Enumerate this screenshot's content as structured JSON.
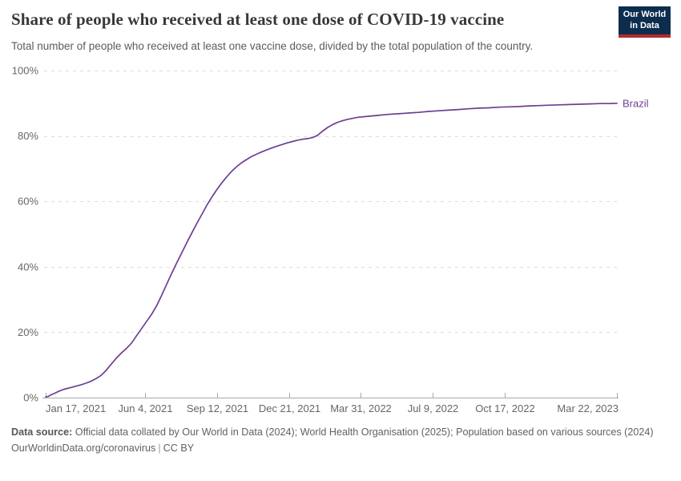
{
  "header": {
    "title": "Share of people who received at least one dose of COVID-19 vaccine",
    "subtitle": "Total number of people who received at least one vaccine dose, divided by the total population of the country."
  },
  "logo": {
    "line1": "Our World",
    "line2": "in Data",
    "bg_color": "#0d2d4f",
    "accent_color": "#b5292b"
  },
  "chart_data": {
    "type": "line",
    "title": "Share of people who received at least one dose of COVID-19 vaccine",
    "xlabel": "",
    "ylabel": "",
    "ylim": [
      0,
      100
    ],
    "x_range_dates": [
      "2021-01-17",
      "2023-03-22"
    ],
    "grid": "horizontal-dashed",
    "legend_position": "end-of-line",
    "colors": {
      "grid": "#dcdcdc",
      "axis": "#a8a8a8",
      "tick_label": "#666666"
    },
    "y_axis": {
      "tick_values": [
        0,
        20,
        40,
        60,
        80,
        100
      ],
      "tick_labels": [
        "0%",
        "20%",
        "40%",
        "60%",
        "80%",
        "100%"
      ]
    },
    "x_axis": {
      "tick_dates": [
        "2021-01-17",
        "2021-06-04",
        "2021-09-12",
        "2021-12-21",
        "2022-03-31",
        "2022-07-09",
        "2022-10-17",
        "2023-03-22"
      ],
      "tick_labels": [
        "Jan 17, 2021",
        "Jun 4, 2021",
        "Sep 12, 2021",
        "Dec 21, 2021",
        "Mar 31, 2022",
        "Jul 9, 2022",
        "Oct 17, 2022",
        "Mar 22, 2023"
      ]
    },
    "series": [
      {
        "name": "Brazil",
        "color": "#6d3e91",
        "points": [
          [
            "2021-01-17",
            0.2
          ],
          [
            "2021-01-21",
            0.4
          ],
          [
            "2021-01-24",
            0.8
          ],
          [
            "2021-01-28",
            1.2
          ],
          [
            "2021-01-31",
            1.5
          ],
          [
            "2021-02-04",
            1.9
          ],
          [
            "2021-02-07",
            2.2
          ],
          [
            "2021-02-11",
            2.5
          ],
          [
            "2021-02-14",
            2.7
          ],
          [
            "2021-02-21",
            3.1
          ],
          [
            "2021-02-28",
            3.5
          ],
          [
            "2021-03-07",
            3.9
          ],
          [
            "2021-03-14",
            4.4
          ],
          [
            "2021-03-21",
            5.0
          ],
          [
            "2021-03-28",
            5.8
          ],
          [
            "2021-04-04",
            6.8
          ],
          [
            "2021-04-11",
            8.3
          ],
          [
            "2021-04-18",
            10.2
          ],
          [
            "2021-04-25",
            12.0
          ],
          [
            "2021-05-02",
            13.6
          ],
          [
            "2021-05-09",
            15.0
          ],
          [
            "2021-05-16",
            16.6
          ],
          [
            "2021-05-23",
            18.8
          ],
          [
            "2021-05-30",
            21.0
          ],
          [
            "2021-06-06",
            23.2
          ],
          [
            "2021-06-13",
            25.4
          ],
          [
            "2021-06-20",
            28.0
          ],
          [
            "2021-06-27",
            31.2
          ],
          [
            "2021-07-04",
            34.6
          ],
          [
            "2021-07-11",
            37.9
          ],
          [
            "2021-07-18",
            41.1
          ],
          [
            "2021-07-25",
            44.2
          ],
          [
            "2021-08-01",
            47.3
          ],
          [
            "2021-08-08",
            50.3
          ],
          [
            "2021-08-15",
            53.2
          ],
          [
            "2021-08-22",
            56.0
          ],
          [
            "2021-08-29",
            58.8
          ],
          [
            "2021-09-05",
            61.3
          ],
          [
            "2021-09-12",
            63.6
          ],
          [
            "2021-09-19",
            65.7
          ],
          [
            "2021-09-26",
            67.6
          ],
          [
            "2021-10-03",
            69.3
          ],
          [
            "2021-10-10",
            70.7
          ],
          [
            "2021-10-17",
            71.9
          ],
          [
            "2021-10-24",
            72.9
          ],
          [
            "2021-10-31",
            73.8
          ],
          [
            "2021-11-07",
            74.5
          ],
          [
            "2021-11-14",
            75.2
          ],
          [
            "2021-11-21",
            75.8
          ],
          [
            "2021-11-28",
            76.4
          ],
          [
            "2021-12-05",
            76.9
          ],
          [
            "2021-12-12",
            77.4
          ],
          [
            "2021-12-19",
            77.9
          ],
          [
            "2021-12-26",
            78.3
          ],
          [
            "2022-01-02",
            78.7
          ],
          [
            "2022-01-09",
            79.0
          ],
          [
            "2022-01-16",
            79.2
          ],
          [
            "2022-01-23",
            79.5
          ],
          [
            "2022-01-30",
            80.2
          ],
          [
            "2022-02-06",
            81.5
          ],
          [
            "2022-02-13",
            82.6
          ],
          [
            "2022-02-20",
            83.5
          ],
          [
            "2022-02-27",
            84.2
          ],
          [
            "2022-03-06",
            84.7
          ],
          [
            "2022-03-13",
            85.1
          ],
          [
            "2022-03-20",
            85.4
          ],
          [
            "2022-03-27",
            85.7
          ],
          [
            "2022-04-10",
            86.0
          ],
          [
            "2022-04-24",
            86.3
          ],
          [
            "2022-05-08",
            86.6
          ],
          [
            "2022-05-22",
            86.8
          ],
          [
            "2022-06-05",
            87.0
          ],
          [
            "2022-06-19",
            87.2
          ],
          [
            "2022-07-03",
            87.5
          ],
          [
            "2022-07-17",
            87.7
          ],
          [
            "2022-07-31",
            87.9
          ],
          [
            "2022-08-14",
            88.1
          ],
          [
            "2022-08-28",
            88.3
          ],
          [
            "2022-09-11",
            88.5
          ],
          [
            "2022-09-25",
            88.6
          ],
          [
            "2022-10-09",
            88.8
          ],
          [
            "2022-10-23",
            88.9
          ],
          [
            "2022-11-06",
            89.0
          ],
          [
            "2022-11-20",
            89.2
          ],
          [
            "2022-12-04",
            89.3
          ],
          [
            "2022-12-18",
            89.4
          ],
          [
            "2023-01-01",
            89.5
          ],
          [
            "2023-01-15",
            89.6
          ],
          [
            "2023-01-29",
            89.7
          ],
          [
            "2023-02-12",
            89.8
          ],
          [
            "2023-02-26",
            89.9
          ],
          [
            "2023-03-12",
            89.9
          ],
          [
            "2023-03-22",
            90.0
          ]
        ]
      }
    ]
  },
  "footer": {
    "source_bold": "Data source:",
    "source_text": " Official data collated by Our World in Data (2024); World Health Organisation (2025); Population based on various sources (2024)",
    "url": "OurWorldinData.org/coronavirus",
    "separator": "|",
    "license": "CC BY"
  }
}
